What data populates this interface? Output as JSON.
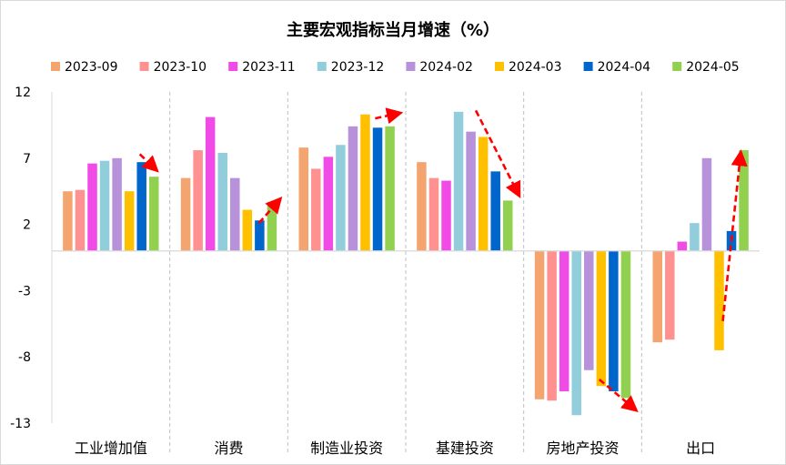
{
  "chart_data": {
    "type": "bar",
    "title": "主要宏观指标当月增速（%）",
    "xlabel": "",
    "ylabel": "",
    "ylim": [
      -13,
      12
    ],
    "yticks": [
      12,
      7,
      2,
      -3,
      -8,
      -13
    ],
    "grid": false,
    "legend": "top",
    "categories": [
      "工业增加值",
      "消费",
      "制造业投资",
      "基建投资",
      "房地产投资",
      "出口"
    ],
    "series": [
      {
        "name": "2023-09",
        "color": "#F4A46E",
        "values": [
          4.5,
          5.5,
          7.8,
          6.7,
          -11.2,
          -6.9
        ]
      },
      {
        "name": "2023-10",
        "color": "#FF9190",
        "values": [
          4.6,
          7.6,
          6.2,
          5.5,
          -11.3,
          -6.7
        ]
      },
      {
        "name": "2023-11",
        "color": "#F04BE6",
        "values": [
          6.6,
          10.1,
          7.1,
          5.3,
          -10.6,
          0.7
        ]
      },
      {
        "name": "2023-12",
        "color": "#92CDDC",
        "values": [
          6.8,
          7.4,
          8.0,
          10.5,
          -12.4,
          2.1
        ]
      },
      {
        "name": "2024-02",
        "color": "#B792DA",
        "values": [
          7.0,
          5.5,
          9.4,
          9.0,
          -9.0,
          7.0
        ]
      },
      {
        "name": "2024-03",
        "color": "#FFC000",
        "values": [
          4.5,
          3.1,
          10.3,
          8.6,
          -10.2,
          -7.5
        ]
      },
      {
        "name": "2024-04",
        "color": "#0066CC",
        "values": [
          6.7,
          2.3,
          9.3,
          6.0,
          -10.6,
          1.5
        ]
      },
      {
        "name": "2024-05",
        "color": "#92D050",
        "values": [
          5.6,
          3.7,
          9.4,
          3.8,
          -11.1,
          7.6
        ]
      }
    ],
    "annotations": [
      {
        "type": "trend-arrow",
        "category": "工业增加值",
        "from": [
          5.85,
          7.3
        ],
        "to": [
          7.2,
          6.1
        ]
      },
      {
        "type": "trend-arrow",
        "category": "消费",
        "from": [
          5.95,
          2.1
        ],
        "to": [
          7.65,
          3.9
        ]
      },
      {
        "type": "trend-arrow",
        "category": "制造业投资",
        "from": [
          5.8,
          10.0
        ],
        "to": [
          7.8,
          10.4
        ]
      },
      {
        "type": "trend-arrow",
        "category": "基建投资",
        "from": [
          4.4,
          10.6
        ],
        "to": [
          7.9,
          4.2
        ]
      },
      {
        "type": "trend-arrow",
        "category": "房地产投资",
        "from": [
          4.85,
          -9.7
        ],
        "to": [
          7.8,
          -12.0
        ]
      },
      {
        "type": "trend-arrow",
        "category": "出口",
        "from": [
          5.3,
          -5.3
        ],
        "to": [
          6.75,
          7.4
        ]
      }
    ],
    "colors": {
      "axis": "#d9d9d9",
      "arrow": "#ff0000",
      "text": "#000000",
      "separator": "#bfbfbf"
    }
  }
}
